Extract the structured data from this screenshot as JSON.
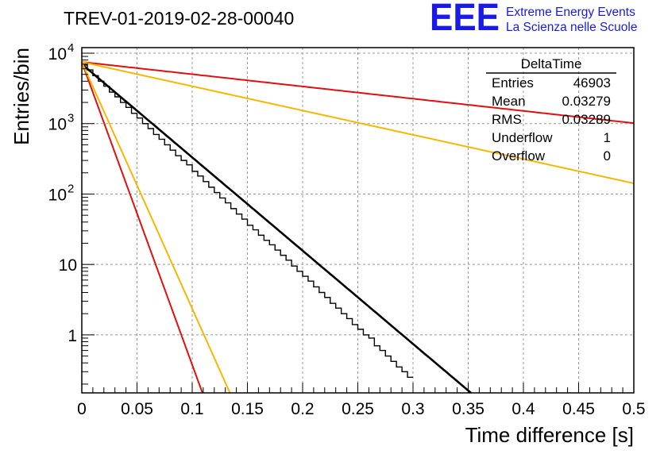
{
  "chart_data": {
    "type": "histogram",
    "title": "TREV-01-2019-02-28-00040",
    "xlabel": "Time difference [s]",
    "ylabel": "Entries/bin",
    "xlim": [
      0,
      0.5
    ],
    "ylim": [
      0.15,
      12000
    ],
    "yscale": "log",
    "grid": true,
    "x_ticks": [
      {
        "v": 0,
        "label": "0"
      },
      {
        "v": 0.05,
        "label": "0.05"
      },
      {
        "v": 0.1,
        "label": "0.1"
      },
      {
        "v": 0.15,
        "label": "0.15"
      },
      {
        "v": 0.2,
        "label": "0.2"
      },
      {
        "v": 0.25,
        "label": "0.25"
      },
      {
        "v": 0.3,
        "label": "0.3"
      },
      {
        "v": 0.35,
        "label": "0.35"
      },
      {
        "v": 0.4,
        "label": "0.4"
      },
      {
        "v": 0.45,
        "label": "0.45"
      },
      {
        "v": 0.5,
        "label": "0.5"
      }
    ],
    "y_ticks": [
      {
        "v": 1,
        "label": "1"
      },
      {
        "v": 10,
        "label": "10"
      },
      {
        "v": 100,
        "label": "10",
        "exp": "2"
      },
      {
        "v": 1000,
        "label": "10",
        "exp": "3"
      },
      {
        "v": 10000,
        "label": "10",
        "exp": "4"
      }
    ],
    "histogram": {
      "bin_width": 0.005,
      "color": "#000000",
      "values": [
        6800,
        5800,
        4800,
        4000,
        3400,
        2800,
        2400,
        2000,
        1700,
        1400,
        1200,
        1000,
        850,
        700,
        600,
        500,
        420,
        350,
        300,
        260,
        210,
        180,
        150,
        125,
        105,
        88,
        75,
        62,
        52,
        44,
        36,
        31,
        26,
        22,
        19,
        16,
        13.5,
        11.5,
        9.5,
        8,
        6.8,
        5.8,
        4.8,
        4,
        3.4,
        2.8,
        2.4,
        2,
        1.7,
        1.4,
        1.2,
        1,
        0.9,
        0.7,
        0.6,
        0.5,
        0.42,
        0.35,
        0.3,
        0.25
      ]
    },
    "series": [
      {
        "type": "exponential",
        "color": "#000000",
        "A": 7000,
        "tau": 0.03279,
        "x_max": 0.36
      },
      {
        "type": "exponential",
        "color": "#e01010",
        "A": 7500,
        "tau": 0.25,
        "x_max": 0.5
      },
      {
        "type": "exponential",
        "color": "#f5b800",
        "A": 7500,
        "tau": 0.126,
        "x_max": 0.5
      },
      {
        "type": "exponential",
        "color": "#e01010",
        "A": 7500,
        "tau": 0.0101,
        "x_max": 0.12
      },
      {
        "type": "exponential",
        "color": "#f5b800",
        "A": 7500,
        "tau": 0.0124,
        "x_max": 0.15
      }
    ]
  },
  "stats": {
    "title": "DeltaTime",
    "rows": [
      {
        "label": "Entries",
        "value": "46903"
      },
      {
        "label": "Mean",
        "value": "0.03279"
      },
      {
        "label": "RMS",
        "value": "0.03289"
      },
      {
        "label": "Underflow",
        "value": "1"
      },
      {
        "label": "Overflow",
        "value": "0"
      }
    ]
  },
  "logo": {
    "mark": "EEE",
    "line1": "Extreme Energy Events",
    "line2": "La Scienza nelle Scuole"
  }
}
